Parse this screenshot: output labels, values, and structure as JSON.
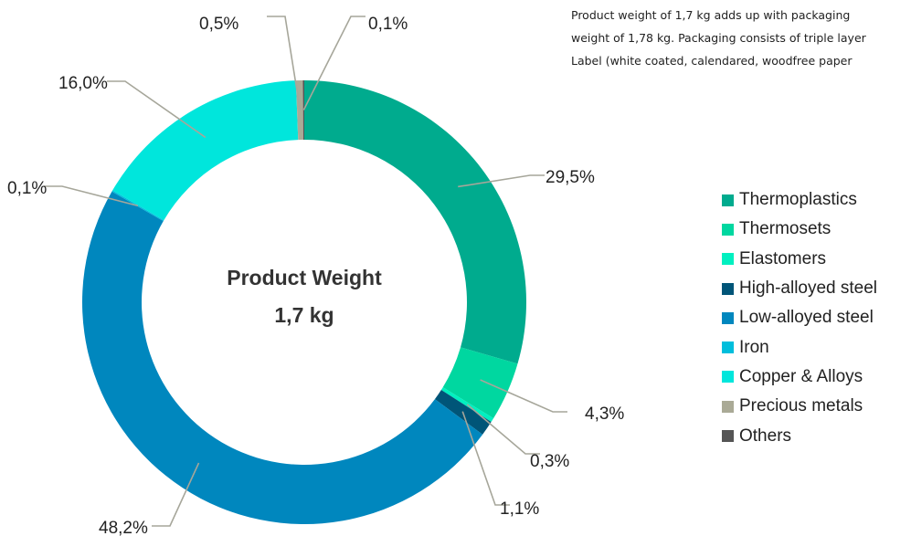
{
  "note": {
    "lines": [
      "Product weight of 1,7 kg adds up with packaging",
      "weight of 1,78 kg. Packaging consists of triple layer",
      "Label (white coated, calendared, woodfree paper"
    ]
  },
  "chart_data": {
    "type": "pie",
    "variant": "donut",
    "center_title": "Product Weight",
    "center_value": "1,7 kg",
    "slices": [
      {
        "name": "Thermoplastics",
        "value": 29.5,
        "label": "29,5%",
        "color": "#00ab8e"
      },
      {
        "name": "Thermosets",
        "value": 4.3,
        "label": "4,3%",
        "color": "#00d7a0"
      },
      {
        "name": "Elastomers",
        "value": 0.3,
        "label": "0,3%",
        "color": "#00f0c0"
      },
      {
        "name": "High-alloyed steel",
        "value": 1.1,
        "label": "1,1%",
        "color": "#005578"
      },
      {
        "name": "Low-alloyed steel",
        "value": 48.2,
        "label": "48,2%",
        "color": "#0087be"
      },
      {
        "name": "Iron",
        "value": 0.1,
        "label": "0,1%",
        "color": "#00bedc"
      },
      {
        "name": "Copper & Alloys",
        "value": 16.0,
        "label": "16,0%",
        "color": "#00e6dc"
      },
      {
        "name": "Precious metals",
        "value": 0.5,
        "label": "0,5%",
        "color": "#aaaa96"
      },
      {
        "name": "Others",
        "value": 0.1,
        "label": "0,1%",
        "color": "#555555"
      }
    ],
    "legend_position": "right"
  }
}
